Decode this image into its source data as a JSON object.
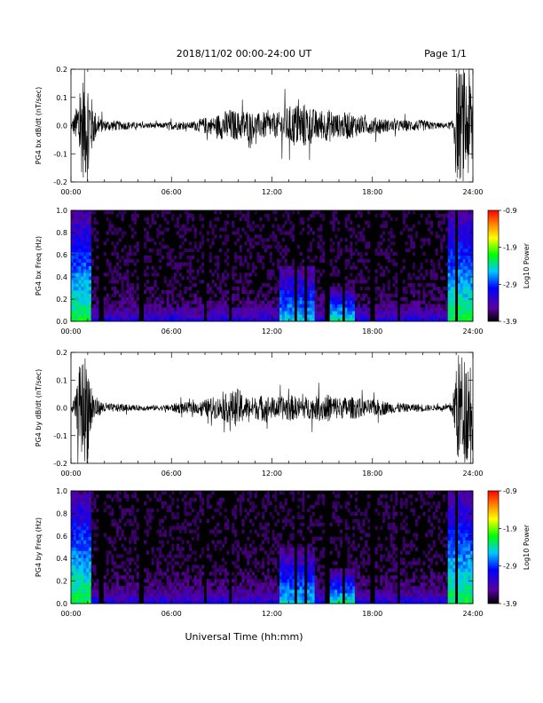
{
  "header": {
    "title": "2018/11/02  00:00-24:00 UT",
    "page": "Page 1/1"
  },
  "footer": {
    "xlabel": "Universal Time (hh:mm)"
  },
  "colorbar": {
    "label": "Log10 Power",
    "ticks": [
      "-0.9",
      "-1.9",
      "-2.9",
      "-3.9"
    ],
    "colors": [
      "#000000",
      "#5a00a0",
      "#0000ff",
      "#00c8ff",
      "#00ff00",
      "#ffff00",
      "#ff8000",
      "#ff0000"
    ]
  },
  "chart_data": [
    {
      "type": "line",
      "title": "",
      "xlabel": "",
      "ylabel": "PG4 bx dB/dt (nT/sec)",
      "xlim": [
        0,
        24
      ],
      "ylim": [
        -0.2,
        0.2
      ],
      "x_ticks": [
        "00:00",
        "06:00",
        "12:00",
        "18:00",
        "24:00"
      ],
      "y_ticks": [
        "0.2",
        "0.1",
        "0.0",
        "-0.1",
        "-0.2"
      ],
      "series": [
        {
          "x": [
            0.0,
            0.3,
            0.5,
            0.8,
            1.0,
            1.3,
            1.6,
            2.0,
            2.5,
            3.0,
            3.5,
            4.0,
            4.5,
            5.0,
            5.5,
            6.0,
            6.5,
            7.0,
            7.5,
            8.0,
            8.5,
            9.0,
            9.5,
            10.0,
            10.5,
            11.0,
            11.5,
            12.0,
            12.5,
            13.0,
            13.5,
            14.0,
            14.5,
            15.0,
            15.5,
            16.0,
            16.5,
            17.0,
            17.5,
            18.0,
            18.5,
            19.0,
            19.5,
            20.0,
            20.5,
            21.0,
            21.5,
            22.0,
            22.5,
            22.8,
            23.0,
            23.3,
            23.6,
            24.0
          ],
          "amp": [
            0.01,
            0.06,
            0.15,
            0.2,
            0.2,
            0.08,
            0.03,
            0.02,
            0.02,
            0.015,
            0.015,
            0.01,
            0.01,
            0.01,
            0.01,
            0.015,
            0.015,
            0.01,
            0.02,
            0.03,
            0.03,
            0.05,
            0.06,
            0.05,
            0.06,
            0.04,
            0.05,
            0.04,
            0.05,
            0.07,
            0.08,
            0.08,
            0.06,
            0.05,
            0.06,
            0.04,
            0.05,
            0.04,
            0.03,
            0.03,
            0.03,
            0.02,
            0.02,
            0.02,
            0.02,
            0.02,
            0.015,
            0.01,
            0.01,
            0.02,
            0.2,
            0.2,
            0.2,
            0.2
          ]
        }
      ]
    },
    {
      "type": "heatmap",
      "title": "",
      "xlabel": "",
      "ylabel": "PG4 bx Freq (Hz)",
      "xlim": [
        0,
        24
      ],
      "ylim": [
        0,
        1.0
      ],
      "zlim": [
        -3.9,
        -0.9
      ],
      "x_ticks": [
        "00:00",
        "06:00",
        "12:00",
        "18:00",
        "24:00"
      ],
      "y_ticks": [
        "1.0",
        "0.8",
        "0.6",
        "0.4",
        "0.2",
        "0.0"
      ],
      "hot_regions": [
        {
          "t": [
            0.0,
            1.2
          ],
          "f_max": 1.0,
          "level": 0.55
        },
        {
          "t": [
            12.5,
            14.5
          ],
          "f_max": 0.5,
          "level": 0.45
        },
        {
          "t": [
            15.5,
            17.0
          ],
          "f_max": 0.3,
          "level": 0.5
        },
        {
          "t": [
            22.5,
            24.0
          ],
          "f_max": 1.0,
          "level": 0.55
        }
      ],
      "gaps": [
        1.8,
        4.2,
        8.0,
        9.5,
        13.4,
        14.0,
        15.3,
        16.3,
        18.0,
        19.6,
        23.0
      ]
    },
    {
      "type": "line",
      "title": "",
      "xlabel": "",
      "ylabel": "PG4 by dB/dt (nT/sec)",
      "xlim": [
        0,
        24
      ],
      "ylim": [
        -0.2,
        0.2
      ],
      "x_ticks": [
        "00:00",
        "06:00",
        "12:00",
        "18:00",
        "24:00"
      ],
      "y_ticks": [
        "0.2",
        "0.1",
        "0.0",
        "-0.1",
        "-0.2"
      ],
      "series": [
        {
          "x": [
            0.0,
            0.3,
            0.5,
            0.8,
            1.0,
            1.3,
            1.6,
            2.0,
            2.5,
            3.0,
            3.5,
            4.0,
            4.5,
            5.0,
            5.5,
            6.0,
            6.5,
            7.0,
            7.5,
            8.0,
            8.5,
            9.0,
            9.5,
            10.0,
            10.5,
            11.0,
            11.5,
            12.0,
            12.5,
            13.0,
            13.5,
            14.0,
            14.5,
            15.0,
            15.5,
            16.0,
            16.5,
            17.0,
            17.5,
            18.0,
            18.5,
            19.0,
            19.5,
            20.0,
            20.5,
            21.0,
            21.5,
            22.0,
            22.5,
            22.8,
            23.0,
            23.3,
            23.6,
            24.0
          ],
          "amp": [
            0.01,
            0.05,
            0.15,
            0.2,
            0.2,
            0.07,
            0.03,
            0.02,
            0.015,
            0.015,
            0.01,
            0.01,
            0.01,
            0.01,
            0.01,
            0.015,
            0.02,
            0.02,
            0.02,
            0.03,
            0.04,
            0.04,
            0.06,
            0.07,
            0.04,
            0.04,
            0.05,
            0.04,
            0.04,
            0.05,
            0.04,
            0.04,
            0.04,
            0.05,
            0.05,
            0.04,
            0.04,
            0.04,
            0.03,
            0.03,
            0.03,
            0.02,
            0.02,
            0.015,
            0.015,
            0.015,
            0.01,
            0.01,
            0.01,
            0.03,
            0.2,
            0.2,
            0.2,
            0.2
          ]
        }
      ]
    },
    {
      "type": "heatmap",
      "title": "",
      "xlabel": "",
      "ylabel": "PG4 by Freq (Hz)",
      "xlim": [
        0,
        24
      ],
      "ylim": [
        0,
        1.0
      ],
      "zlim": [
        -3.9,
        -0.9
      ],
      "x_ticks": [
        "00:00",
        "06:00",
        "12:00",
        "18:00",
        "24:00"
      ],
      "y_ticks": [
        "1.0",
        "0.8",
        "0.6",
        "0.4",
        "0.2",
        "0.0"
      ],
      "hot_regions": [
        {
          "t": [
            0.0,
            1.2
          ],
          "f_max": 1.0,
          "level": 0.55
        },
        {
          "t": [
            12.5,
            14.5
          ],
          "f_max": 0.5,
          "level": 0.45
        },
        {
          "t": [
            15.5,
            17.0
          ],
          "f_max": 0.3,
          "level": 0.5
        },
        {
          "t": [
            22.5,
            24.0
          ],
          "f_max": 1.0,
          "level": 0.55
        }
      ],
      "gaps": [
        1.8,
        4.2,
        8.0,
        9.5,
        13.4,
        14.0,
        15.3,
        16.3,
        18.0,
        19.6,
        23.0
      ]
    }
  ]
}
